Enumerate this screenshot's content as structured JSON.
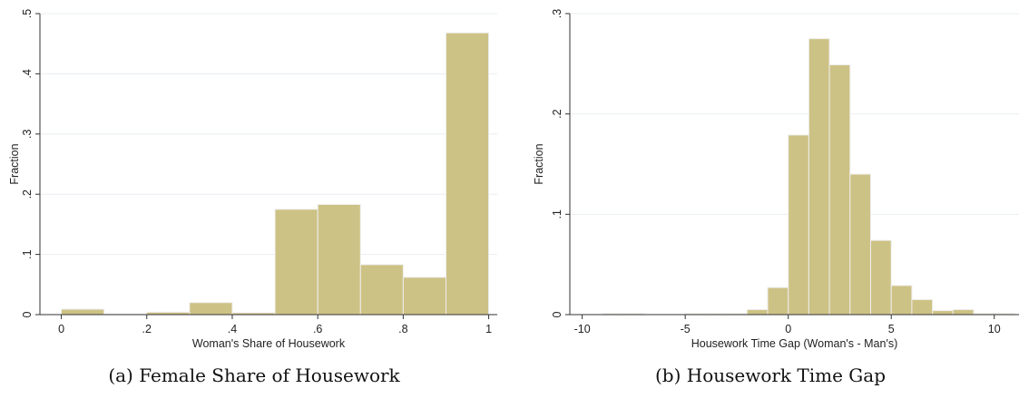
{
  "chart_data": [
    {
      "type": "bar",
      "subtype": "histogram",
      "panel_label": "(a)",
      "caption": "Female Share of Housework",
      "xlabel": "Woman's Share of Housework",
      "ylabel": "Fraction",
      "xlim": [
        -0.05,
        1.02
      ],
      "ylim": [
        0,
        0.5
      ],
      "xticks": [
        0,
        0.2,
        0.4,
        0.6,
        0.8,
        1
      ],
      "xtick_labels": [
        "0",
        ".2",
        ".4",
        ".6",
        ".8",
        "1"
      ],
      "yticks": [
        0,
        0.1,
        0.2,
        0.3,
        0.4,
        0.5
      ],
      "ytick_labels": [
        "0",
        ".1",
        ".2",
        ".3",
        ".4",
        ".5"
      ],
      "bin_edges": [
        0,
        0.1,
        0.2,
        0.3,
        0.4,
        0.5,
        0.6,
        0.7,
        0.8,
        0.9,
        1.0
      ],
      "values": [
        0.009,
        0.001,
        0.004,
        0.02,
        0.003,
        0.175,
        0.183,
        0.083,
        0.062,
        0.468
      ],
      "grid": "horizontal",
      "bar_color": "#cdc285"
    },
    {
      "type": "bar",
      "subtype": "histogram",
      "panel_label": "(b)",
      "caption": "Housework Time Gap",
      "xlabel": "Housework Time Gap (Woman's - Man's)",
      "ylabel": "Fraction",
      "xlim": [
        -10.6,
        11.2
      ],
      "ylim": [
        0,
        0.3
      ],
      "xticks": [
        -10,
        -5,
        0,
        5,
        10
      ],
      "xtick_labels": [
        "-10",
        "-5",
        "0",
        "5",
        "10"
      ],
      "yticks": [
        0,
        0.1,
        0.2,
        0.3
      ],
      "ytick_labels": [
        "0",
        ".1",
        ".2",
        ".3"
      ],
      "bin_edges": [
        -9,
        -8,
        -7,
        -6,
        -5,
        -4,
        -3,
        -2,
        -1,
        0,
        1,
        2,
        3,
        4,
        5,
        6,
        7,
        8,
        9,
        10,
        11
      ],
      "values": [
        0.001,
        0.001,
        0.0,
        0.0,
        0.001,
        0.001,
        0.001,
        0.005,
        0.027,
        0.179,
        0.275,
        0.249,
        0.14,
        0.074,
        0.029,
        0.015,
        0.004,
        0.005,
        0.001,
        0.001
      ],
      "grid": "horizontal",
      "bar_color": "#cdc285"
    }
  ]
}
